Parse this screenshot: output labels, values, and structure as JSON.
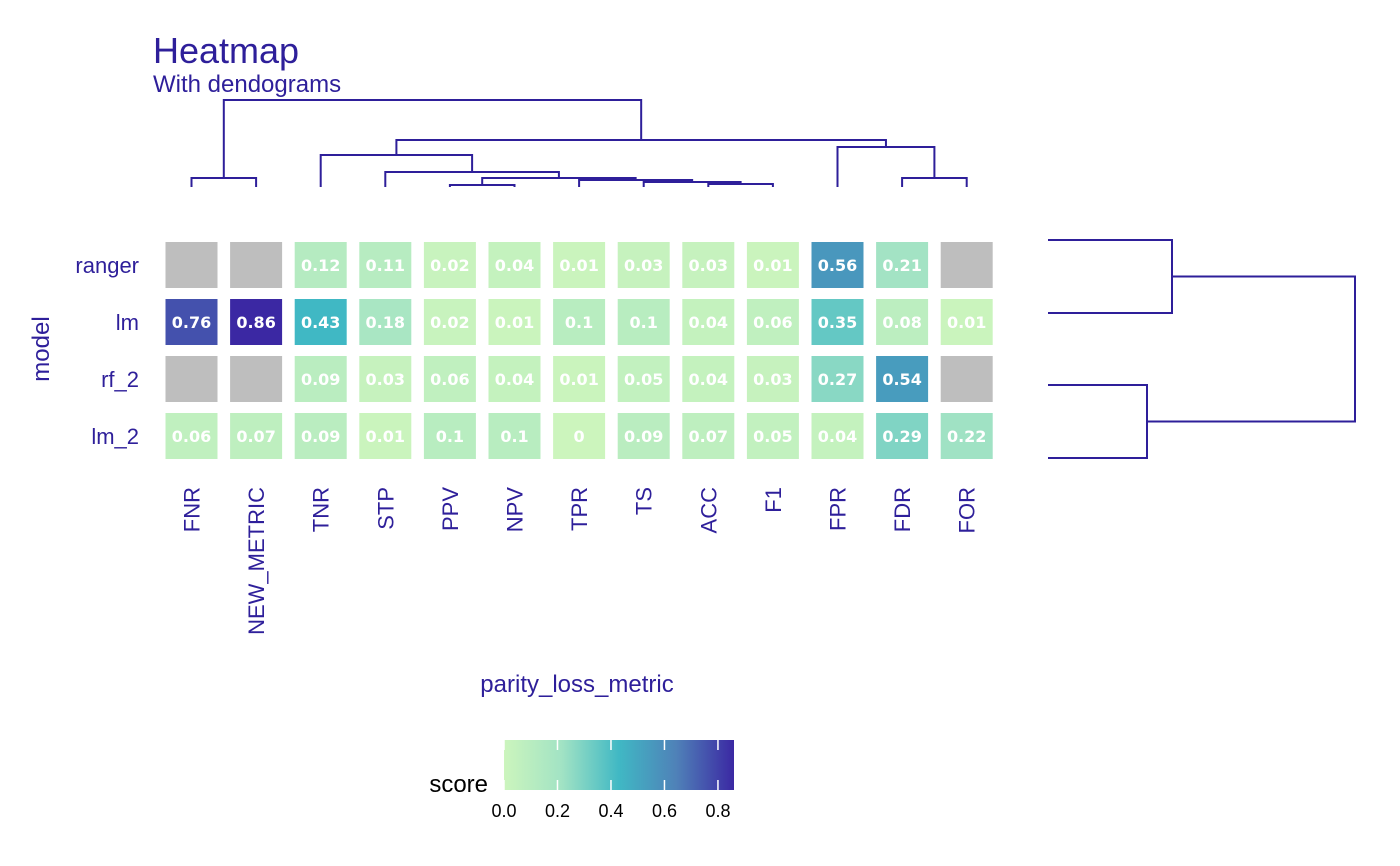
{
  "chart_data": {
    "type": "heatmap",
    "title": "Heatmap",
    "subtitle": "With dendograms",
    "xlabel": "parity_loss_metric",
    "ylabel": "model",
    "rows": [
      "ranger",
      "lm",
      "rf_2",
      "lm_2"
    ],
    "columns": [
      "FNR",
      "NEW_METRIC",
      "TNR",
      "STP",
      "PPV",
      "NPV",
      "TPR",
      "TS",
      "ACC",
      "F1",
      "FPR",
      "FDR",
      "FOR"
    ],
    "values": [
      [
        null,
        null,
        0.12,
        0.11,
        0.02,
        0.04,
        0.01,
        0.03,
        0.03,
        0.01,
        0.56,
        0.21,
        null
      ],
      [
        0.76,
        0.86,
        0.43,
        0.18,
        0.02,
        0.01,
        0.1,
        0.1,
        0.04,
        0.06,
        0.35,
        0.08,
        0.01
      ],
      [
        null,
        null,
        0.09,
        0.03,
        0.06,
        0.04,
        0.01,
        0.05,
        0.04,
        0.03,
        0.27,
        0.54,
        null
      ],
      [
        0.06,
        0.07,
        0.09,
        0.01,
        0.1,
        0.1,
        0,
        0.09,
        0.07,
        0.05,
        0.04,
        0.29,
        0.22
      ]
    ],
    "value_labels": [
      [
        "",
        "",
        "0.12",
        "0.11",
        "0.02",
        "0.04",
        "0.01",
        "0.03",
        "0.03",
        "0.01",
        "0.56",
        "0.21",
        ""
      ],
      [
        "0.76",
        "0.86",
        "0.43",
        "0.18",
        "0.02",
        "0.01",
        "0.1",
        "0.1",
        "0.04",
        "0.06",
        "0.35",
        "0.08",
        "0.01"
      ],
      [
        "",
        "",
        "0.09",
        "0.03",
        "0.06",
        "0.04",
        "0.01",
        "0.05",
        "0.04",
        "0.03",
        "0.27",
        "0.54",
        ""
      ],
      [
        "0.06",
        "0.07",
        "0.09",
        "0.01",
        "0.1",
        "0.1",
        "0",
        "0.09",
        "0.07",
        "0.05",
        "0.04",
        "0.29",
        "0.22"
      ]
    ],
    "legend": {
      "title": "score",
      "ticks": [
        "0.0",
        "0.2",
        "0.4",
        "0.6",
        "0.8"
      ],
      "tick_values": [
        0,
        0.2,
        0.4,
        0.6,
        0.8
      ],
      "range": [
        0,
        0.86
      ],
      "placement": "bottom"
    },
    "na_color": "#bebebe",
    "colors": {
      "scale": [
        "#ccf5bd",
        "#a2e3c4",
        "#40b8c4",
        "#4f81b8",
        "#3b28a3"
      ],
      "text": "#2e1f9a",
      "dendrogram": "#2e1f9a",
      "legend_text": "#000000"
    },
    "column_dendrogram": "top",
    "row_dendrogram": "right"
  }
}
